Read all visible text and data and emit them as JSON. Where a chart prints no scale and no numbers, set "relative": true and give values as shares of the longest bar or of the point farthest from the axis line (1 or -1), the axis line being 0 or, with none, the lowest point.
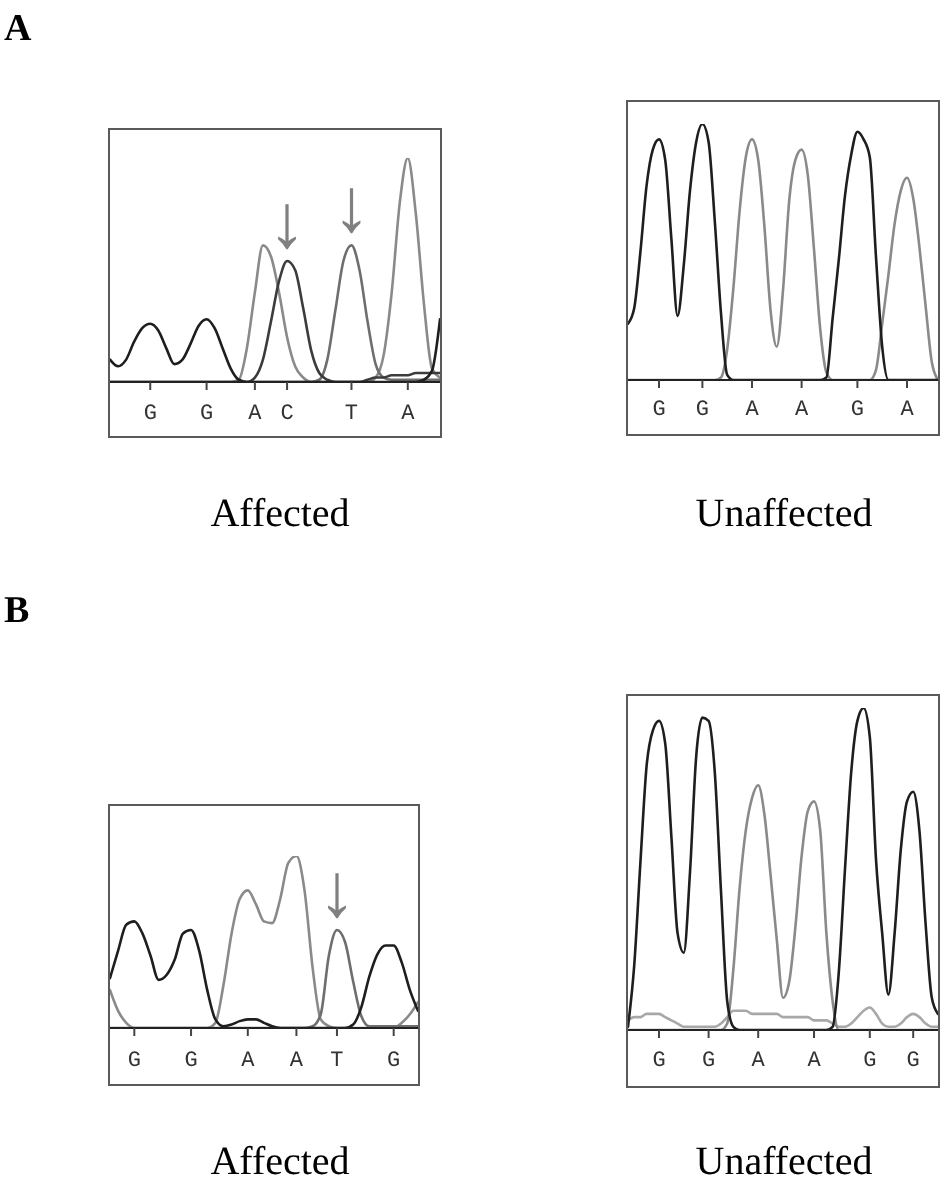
{
  "chart_data": [
    {
      "type": "line",
      "title": "A",
      "xlabel": "Affected",
      "relative": true,
      "categories": [
        null,
        null,
        null,
        null,
        null,
        "G",
        null,
        null,
        null,
        null,
        null,
        null,
        "G",
        null,
        null,
        null,
        null,
        null,
        "A",
        null,
        null,
        null,
        "C",
        null,
        null,
        null,
        null,
        null,
        null,
        null,
        "T",
        null,
        null,
        null,
        null,
        null,
        null,
        "A",
        null,
        null,
        null,
        null
      ],
      "series": [
        {
          "color": "#8a8a8a",
          "values": [
            0,
            0,
            0,
            0,
            0,
            0,
            0,
            0,
            0,
            0,
            0,
            0,
            0,
            0,
            0,
            0,
            0.01,
            0.15,
            0.4,
            0.61,
            0.56,
            0.4,
            0.2,
            0.07,
            0.02,
            0,
            0,
            0,
            0,
            0,
            0,
            0,
            0,
            0.02,
            0.12,
            0.4,
            0.8,
            1,
            0.75,
            0.35,
            0.06,
            0.02
          ]
        },
        {
          "color": "#6e6e6e",
          "values": [
            0,
            0,
            0,
            0,
            0,
            0,
            0,
            0,
            0,
            0,
            0,
            0,
            0,
            0,
            0,
            0,
            0,
            0,
            0,
            0,
            0,
            0,
            0,
            0,
            0,
            0,
            0.01,
            0.1,
            0.32,
            0.54,
            0.61,
            0.5,
            0.27,
            0.08,
            0.02,
            0.01,
            0.01,
            0.01,
            0.01,
            0.01,
            0.01,
            0.01
          ]
        },
        {
          "color": "#3c3c3c",
          "values": [
            0,
            0,
            0,
            0,
            0,
            0,
            0,
            0,
            0,
            0,
            0,
            0,
            0,
            0,
            0,
            0,
            0,
            0,
            0.02,
            0.1,
            0.27,
            0.45,
            0.54,
            0.5,
            0.33,
            0.14,
            0.04,
            0.01,
            0,
            0,
            0,
            0,
            0.01,
            0.02,
            0.02,
            0.03,
            0.03,
            0.03,
            0.04,
            0.04,
            0.04,
            0.04
          ]
        },
        {
          "color": "#1e1e1e",
          "values": [
            0.1,
            0.07,
            0.1,
            0.18,
            0.24,
            0.26,
            0.23,
            0.15,
            0.08,
            0.1,
            0.17,
            0.25,
            0.28,
            0.24,
            0.15,
            0.06,
            0.01,
            0,
            0,
            0,
            0,
            0,
            0,
            0,
            0,
            0,
            0,
            0,
            0,
            0,
            0,
            0,
            0,
            0,
            0,
            0,
            0,
            0,
            0,
            0.01,
            0.05,
            0.28
          ]
        }
      ],
      "annotations": [
        {
          "text": "↓",
          "x": "C",
          "y": 0.54
        },
        {
          "text": "↓",
          "x": "T",
          "y": 0.61
        }
      ]
    },
    {
      "type": "line",
      "xlabel": "Unaffected",
      "relative": true,
      "categories": [
        null,
        null,
        null,
        null,
        null,
        "G",
        null,
        null,
        null,
        null,
        null,
        null,
        "G",
        null,
        null,
        null,
        null,
        null,
        null,
        null,
        "A",
        null,
        null,
        null,
        null,
        null,
        null,
        null,
        "A",
        null,
        null,
        null,
        null,
        null,
        null,
        null,
        null,
        "G",
        null,
        null,
        null,
        null,
        null,
        null,
        null,
        "A",
        null,
        null,
        null,
        null,
        null
      ],
      "series": [
        {
          "color": "#8a8a8a",
          "values": [
            0,
            0,
            0,
            0,
            0,
            0,
            0,
            0,
            0,
            0,
            0,
            0,
            0,
            0,
            0,
            0.01,
            0.12,
            0.36,
            0.66,
            0.87,
            0.94,
            0.86,
            0.6,
            0.27,
            0.13,
            0.35,
            0.7,
            0.86,
            0.9,
            0.8,
            0.51,
            0.2,
            0.03,
            0,
            0,
            0,
            0,
            0,
            0,
            0,
            0.04,
            0.22,
            0.41,
            0.61,
            0.74,
            0.79,
            0.71,
            0.52,
            0.29,
            0.07,
            0
          ]
        },
        {
          "color": "#1e1e1e",
          "values": [
            0.22,
            0.28,
            0.5,
            0.76,
            0.9,
            0.94,
            0.86,
            0.55,
            0.25,
            0.45,
            0.74,
            0.93,
            1,
            0.93,
            0.62,
            0.26,
            0.02,
            0,
            0,
            0,
            0,
            0,
            0,
            0,
            0,
            0,
            0,
            0,
            0,
            0,
            0,
            0,
            0.01,
            0.24,
            0.47,
            0.72,
            0.88,
            0.97,
            0.94,
            0.87,
            0.48,
            0.13,
            0,
            0,
            0,
            0,
            0,
            0,
            0,
            0,
            0
          ]
        }
      ]
    },
    {
      "type": "line",
      "title": "B",
      "xlabel": "Affected",
      "relative": true,
      "categories": [
        null,
        null,
        null,
        "G",
        null,
        null,
        null,
        null,
        null,
        null,
        "G",
        null,
        null,
        null,
        null,
        null,
        null,
        "A",
        null,
        null,
        null,
        null,
        null,
        "A",
        null,
        null,
        null,
        null,
        "T",
        null,
        null,
        null,
        null,
        null,
        null,
        "G",
        null,
        null,
        null
      ],
      "series": [
        {
          "color": "#8a8a8a",
          "values": [
            0.22,
            0.1,
            0.03,
            0,
            0,
            0,
            0,
            0,
            0,
            0,
            0,
            0,
            0,
            0.03,
            0.25,
            0.55,
            0.75,
            0.8,
            0.72,
            0.62,
            0.61,
            0.75,
            0.96,
            1,
            0.8,
            0.35,
            0.05,
            0.01,
            0,
            0,
            0,
            0,
            0,
            0,
            0,
            0,
            0.03,
            0.08,
            0.15
          ]
        },
        {
          "color": "#6e6e6e",
          "values": [
            0,
            0,
            0,
            0,
            0,
            0,
            0,
            0,
            0,
            0,
            0,
            0,
            0,
            0,
            0,
            0,
            0,
            0,
            0,
            0,
            0,
            0,
            0,
            0,
            0,
            0.01,
            0.08,
            0.42,
            0.57,
            0.5,
            0.27,
            0.07,
            0.01,
            0.01,
            0.01,
            0.01,
            0.01,
            0.01,
            0.01
          ]
        },
        {
          "color": "#1e1e1e",
          "values": [
            0.29,
            0.45,
            0.6,
            0.62,
            0.55,
            0.42,
            0.28,
            0.31,
            0.4,
            0.55,
            0.57,
            0.45,
            0.22,
            0.05,
            0.01,
            0.02,
            0.04,
            0.05,
            0.05,
            0.03,
            0.01,
            0,
            0,
            0,
            0,
            0,
            0,
            0,
            0,
            0,
            0.02,
            0.12,
            0.3,
            0.43,
            0.48,
            0.48,
            0.38,
            0.22,
            0.1
          ]
        }
      ],
      "annotations": [
        {
          "text": "↓",
          "x": "T",
          "y": 0.57
        }
      ]
    },
    {
      "type": "line",
      "xlabel": "Unaffected",
      "relative": true,
      "categories": [
        null,
        null,
        null,
        null,
        null,
        "G",
        null,
        null,
        null,
        null,
        null,
        null,
        null,
        "G",
        null,
        null,
        null,
        null,
        null,
        null,
        null,
        "A",
        null,
        null,
        null,
        null,
        null,
        null,
        null,
        null,
        "A",
        null,
        null,
        null,
        null,
        null,
        null,
        null,
        null,
        "G",
        null,
        null,
        null,
        null,
        null,
        null,
        "G",
        null,
        null,
        null,
        null
      ],
      "series": [
        {
          "color": "#a8a8a8",
          "values": [
            0.03,
            0.04,
            0.04,
            0.05,
            0.05,
            0.05,
            0.04,
            0.03,
            0.02,
            0.01,
            0.01,
            0.01,
            0.01,
            0.01,
            0.01,
            0.02,
            0.04,
            0.06,
            0.06,
            0.06,
            0.05,
            0.05,
            0.05,
            0.05,
            0.05,
            0.04,
            0.04,
            0.04,
            0.04,
            0.04,
            0.03,
            0.03,
            0.03,
            0.02,
            0.01,
            0.01,
            0.02,
            0.04,
            0.06,
            0.07,
            0.05,
            0.02,
            0.01,
            0.01,
            0.02,
            0.04,
            0.05,
            0.04,
            0.02,
            0.01,
            0.01
          ]
        },
        {
          "color": "#8a8a8a",
          "values": [
            0,
            0,
            0,
            0,
            0,
            0,
            0,
            0,
            0,
            0,
            0,
            0,
            0,
            0,
            0,
            0,
            0.02,
            0.19,
            0.44,
            0.62,
            0.72,
            0.76,
            0.67,
            0.48,
            0.28,
            0.1,
            0.15,
            0.32,
            0.54,
            0.68,
            0.71,
            0.62,
            0.3,
            0.09,
            0,
            0,
            0,
            0,
            0,
            0,
            0,
            0,
            0,
            0,
            0,
            0,
            0,
            0,
            0,
            0,
            0
          ]
        },
        {
          "color": "#1e1e1e",
          "values": [
            0.01,
            0.2,
            0.52,
            0.82,
            0.93,
            0.96,
            0.89,
            0.6,
            0.3,
            0.24,
            0.49,
            0.85,
            0.97,
            0.96,
            0.8,
            0.43,
            0.09,
            0.01,
            0,
            0,
            0,
            0,
            0,
            0,
            0,
            0,
            0,
            0,
            0,
            0,
            0,
            0,
            0,
            0.01,
            0.18,
            0.5,
            0.8,
            0.96,
            1,
            0.91,
            0.53,
            0.3,
            0.11,
            0.3,
            0.56,
            0.71,
            0.74,
            0.62,
            0.33,
            0.1,
            0.05
          ]
        }
      ]
    }
  ]
}
